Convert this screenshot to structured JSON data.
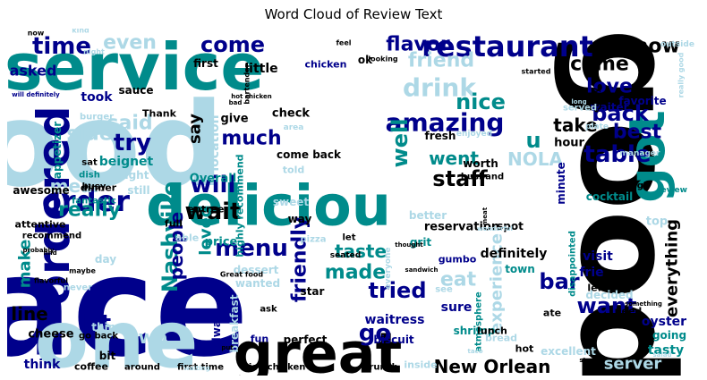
{
  "chart_data": {
    "type": "wordcloud",
    "title": "Word Cloud of Review Text",
    "palette": {
      "lightblue": "#add8e6",
      "teal": "#008b8b",
      "navy": "#00008b",
      "black": "#000000"
    },
    "words": [
      {
        "text": "food",
        "color": "lightblue"
      },
      {
        "text": "place",
        "color": "navy"
      },
      {
        "text": "good",
        "color": "black"
      },
      {
        "text": "service",
        "color": "teal"
      },
      {
        "text": "one",
        "color": "lightblue"
      },
      {
        "text": "deliciou",
        "color": "teal"
      },
      {
        "text": "great",
        "color": "black"
      },
      {
        "text": "ordered",
        "color": "navy"
      },
      {
        "text": "got",
        "color": "teal"
      },
      {
        "text": "restaurant",
        "color": "navy"
      },
      {
        "text": "amazing",
        "color": "navy"
      },
      {
        "text": "drink",
        "color": "lightblue"
      },
      {
        "text": "order",
        "color": "navy"
      },
      {
        "text": "Nashville",
        "color": "teal"
      },
      {
        "text": "even",
        "color": "lightblue"
      },
      {
        "text": "time",
        "color": "navy"
      },
      {
        "text": "come",
        "color": "navy"
      },
      {
        "text": "flavor",
        "color": "navy"
      },
      {
        "text": "nice",
        "color": "teal"
      },
      {
        "text": "friend",
        "color": "lightblue"
      },
      {
        "text": "know",
        "color": "black"
      },
      {
        "text": "came",
        "color": "black"
      },
      {
        "text": "love",
        "color": "navy"
      },
      {
        "text": "back",
        "color": "navy"
      },
      {
        "text": "best",
        "color": "navy"
      },
      {
        "text": "table",
        "color": "navy"
      },
      {
        "text": "take",
        "color": "black"
      },
      {
        "text": "try",
        "color": "navy"
      },
      {
        "text": "said",
        "color": "lightblue"
      },
      {
        "text": "side",
        "color": "lightblue"
      },
      {
        "text": "much",
        "color": "navy"
      },
      {
        "text": "well",
        "color": "teal"
      },
      {
        "text": "staff",
        "color": "black"
      },
      {
        "text": "went",
        "color": "teal"
      },
      {
        "text": "NOLA",
        "color": "lightblue"
      },
      {
        "text": "will",
        "color": "navy"
      },
      {
        "text": "wait",
        "color": "black"
      },
      {
        "text": "really",
        "color": "teal"
      },
      {
        "text": "meal",
        "color": "lightblue"
      },
      {
        "text": "menu",
        "color": "navy"
      },
      {
        "text": "people",
        "color": "navy"
      },
      {
        "text": "loved",
        "color": "teal"
      },
      {
        "text": "taste",
        "color": "teal"
      },
      {
        "text": "made",
        "color": "teal"
      },
      {
        "text": "friendly",
        "color": "navy"
      },
      {
        "text": "tried",
        "color": "navy"
      },
      {
        "text": "eat",
        "color": "lightblue"
      },
      {
        "text": "bar",
        "color": "navy"
      },
      {
        "text": "want",
        "color": "navy"
      },
      {
        "text": "everything",
        "color": "black"
      },
      {
        "text": "experience",
        "color": "lightblue"
      },
      {
        "text": "line",
        "color": "black"
      },
      {
        "text": "lot",
        "color": "navy"
      },
      {
        "text": "make",
        "color": "teal"
      },
      {
        "text": "New Orlean",
        "color": "black"
      },
      {
        "text": "server",
        "color": "lightblue"
      },
      {
        "text": "go",
        "color": "navy"
      },
      {
        "text": "two",
        "color": "lightblue"
      },
      {
        "text": "u",
        "color": "teal"
      },
      {
        "text": "say",
        "color": "black"
      },
      {
        "text": "little",
        "color": "black"
      },
      {
        "text": "first",
        "color": "black"
      },
      {
        "text": "chicken",
        "color": "navy"
      },
      {
        "text": "ok",
        "color": "black"
      },
      {
        "text": "asked",
        "color": "navy"
      },
      {
        "text": "took",
        "color": "navy"
      },
      {
        "text": "sauce",
        "color": "black"
      },
      {
        "text": "burger",
        "color": "lightblue"
      },
      {
        "text": "Thank",
        "color": "black"
      },
      {
        "text": "beignet",
        "color": "teal"
      },
      {
        "text": "appetizer",
        "color": "teal"
      },
      {
        "text": "dish",
        "color": "teal"
      },
      {
        "text": "sat",
        "color": "black"
      },
      {
        "text": "busy",
        "color": "black"
      },
      {
        "text": "awesome",
        "color": "black"
      },
      {
        "text": "fantastic",
        "color": "teal"
      },
      {
        "text": "dinner",
        "color": "black"
      },
      {
        "text": "give",
        "color": "black"
      },
      {
        "text": "check",
        "color": "black"
      },
      {
        "text": "location",
        "color": "lightblue"
      },
      {
        "text": "highly recommend",
        "color": "teal"
      },
      {
        "text": "come back",
        "color": "black"
      },
      {
        "text": "told",
        "color": "lightblue"
      },
      {
        "text": "fresh",
        "color": "black"
      },
      {
        "text": "worth",
        "color": "black"
      },
      {
        "text": "husband",
        "color": "black"
      },
      {
        "text": "hour",
        "color": "black"
      },
      {
        "text": "minute",
        "color": "navy"
      },
      {
        "text": "waiter",
        "color": "navy"
      },
      {
        "text": "favorite",
        "color": "navy"
      },
      {
        "text": "enjoy",
        "color": "black"
      },
      {
        "text": "plate",
        "color": "lightblue"
      },
      {
        "text": "served",
        "color": "lightblue"
      },
      {
        "text": "manager",
        "color": "lightblue"
      },
      {
        "text": "cocktail",
        "color": "teal"
      },
      {
        "text": "review",
        "color": "teal"
      },
      {
        "text": "though",
        "color": "black"
      },
      {
        "text": "top",
        "color": "lightblue"
      },
      {
        "text": "reservation",
        "color": "black"
      },
      {
        "text": "better",
        "color": "lightblue"
      },
      {
        "text": "definitely",
        "color": "black"
      },
      {
        "text": "Overall",
        "color": "teal"
      },
      {
        "text": "still",
        "color": "lightblue"
      },
      {
        "text": "price",
        "color": "teal"
      },
      {
        "text": "entree",
        "color": "black"
      },
      {
        "text": "sweet",
        "color": "lightblue"
      },
      {
        "text": "way",
        "color": "black"
      },
      {
        "text": "right",
        "color": "lightblue"
      },
      {
        "text": "full",
        "color": "black"
      },
      {
        "text": "able",
        "color": "lightblue"
      },
      {
        "text": "dessert",
        "color": "lightblue"
      },
      {
        "text": "attentive",
        "color": "black"
      },
      {
        "text": "recommend",
        "color": "black"
      },
      {
        "text": "grit",
        "color": "teal"
      },
      {
        "text": "town",
        "color": "teal"
      },
      {
        "text": "spot",
        "color": "black"
      },
      {
        "text": "visit",
        "color": "navy"
      },
      {
        "text": "frie",
        "color": "navy"
      },
      {
        "text": "left",
        "color": "black"
      },
      {
        "text": "gumbo",
        "color": "navy"
      },
      {
        "text": "decided",
        "color": "lightblue"
      },
      {
        "text": "disappointed",
        "color": "teal"
      },
      {
        "text": "day",
        "color": "lightblue"
      },
      {
        "text": "wanted",
        "color": "lightblue"
      },
      {
        "text": "star",
        "color": "black"
      },
      {
        "text": "ask",
        "color": "black"
      },
      {
        "text": "waitress",
        "color": "navy"
      },
      {
        "text": "sure",
        "color": "navy"
      },
      {
        "text": "shrimp",
        "color": "teal"
      },
      {
        "text": "need",
        "color": "black"
      },
      {
        "text": "oyster",
        "color": "navy"
      },
      {
        "text": "going",
        "color": "teal"
      },
      {
        "text": "tasty",
        "color": "teal"
      },
      {
        "text": "excellent",
        "color": "lightblue"
      },
      {
        "text": "atmosphere",
        "color": "teal"
      },
      {
        "text": "lunch",
        "color": "black"
      },
      {
        "text": "bread",
        "color": "lightblue"
      },
      {
        "text": "hot",
        "color": "black"
      },
      {
        "text": "ate",
        "color": "black"
      },
      {
        "text": "biscuit",
        "color": "navy"
      },
      {
        "text": "breakfast",
        "color": "lightblue"
      },
      {
        "text": "alway",
        "color": "navy"
      },
      {
        "text": "fun",
        "color": "navy"
      },
      {
        "text": "perfect",
        "color": "black"
      },
      {
        "text": "cheese",
        "color": "black"
      },
      {
        "text": "thing",
        "color": "lightblue"
      },
      {
        "text": "go back",
        "color": "black"
      },
      {
        "text": "bit",
        "color": "black"
      },
      {
        "text": "think",
        "color": "navy"
      },
      {
        "text": "coffee",
        "color": "black"
      },
      {
        "text": "around",
        "color": "black"
      },
      {
        "text": "first time",
        "color": "black"
      },
      {
        "text": "fried chicken",
        "color": "black"
      },
      {
        "text": "brunch",
        "color": "black"
      },
      {
        "text": "inside",
        "color": "lightblue"
      },
      {
        "text": "pizza",
        "color": "lightblue"
      },
      {
        "text": "seated",
        "color": "black"
      },
      {
        "text": "enjoyed",
        "color": "lightblue"
      },
      {
        "text": "let",
        "color": "black"
      },
      {
        "text": "flavorful",
        "color": "black"
      },
      {
        "text": "maybe",
        "color": "black"
      },
      {
        "text": "never",
        "color": "lightblue"
      },
      {
        "text": "Great food",
        "color": "black"
      },
      {
        "text": "outside",
        "color": "lightblue"
      },
      {
        "text": "really good",
        "color": "lightblue"
      },
      {
        "text": "kind",
        "color": "lightblue"
      },
      {
        "text": "now",
        "color": "black"
      },
      {
        "text": "night",
        "color": "lightblue"
      },
      {
        "text": "bartender",
        "color": "black"
      },
      {
        "text": "feel",
        "color": "black"
      },
      {
        "text": "looking",
        "color": "black"
      },
      {
        "text": "started",
        "color": "black"
      },
      {
        "text": "will definitely",
        "color": "navy"
      },
      {
        "text": "hot chicken",
        "color": "black"
      },
      {
        "text": "bad",
        "color": "black"
      },
      {
        "text": "long",
        "color": "lightblue"
      },
      {
        "text": "probably",
        "color": "black"
      },
      {
        "text": "find",
        "color": "black"
      },
      {
        "text": "thought",
        "color": "black"
      },
      {
        "text": "sandwich",
        "color": "black"
      },
      {
        "text": "wonderful",
        "color": "lightblue"
      },
      {
        "text": "something",
        "color": "black"
      },
      {
        "text": "meat",
        "color": "black"
      },
      {
        "text": "stop",
        "color": "black"
      },
      {
        "text": "waiting",
        "color": "lightblue"
      },
      {
        "text": "put",
        "color": "black"
      },
      {
        "text": "area",
        "color": "lightblue"
      },
      {
        "text": "everyone",
        "color": "lightblue"
      },
      {
        "text": "see",
        "color": "lightblue"
      },
      {
        "text": "taco",
        "color": "lightblue"
      },
      {
        "text": "salad",
        "color": "lightblue"
      }
    ]
  }
}
